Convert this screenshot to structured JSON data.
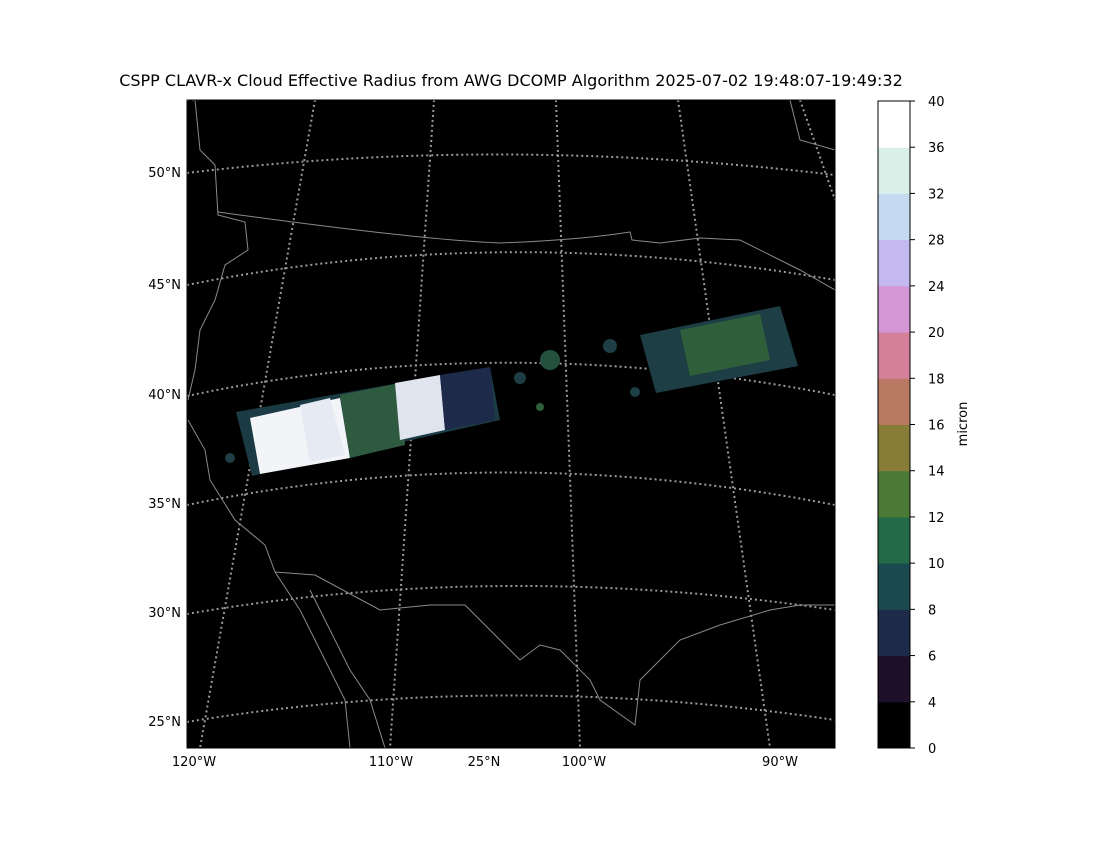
{
  "title": "CSPP CLAVR-x Cloud Effective Radius from AWG DCOMP Algorithm 2025-07-02 19:48:07-19:49:32",
  "map": {
    "lat_labels": [
      "50°N",
      "45°N",
      "40°N",
      "35°N",
      "30°N",
      "25°N"
    ],
    "lon_labels": [
      "120°W",
      "110°W",
      "25°N",
      "100°W",
      "90°W"
    ]
  },
  "colorbar": {
    "label": "micron",
    "ticks": [
      0,
      4,
      6,
      8,
      10,
      12,
      14,
      16,
      18,
      20,
      24,
      28,
      32,
      36,
      40
    ],
    "colors": [
      "#000000",
      "#1e1028",
      "#1e2a4a",
      "#1a4a50",
      "#226a48",
      "#4a7a35",
      "#877c38",
      "#b87862",
      "#d4809a",
      "#d496d4",
      "#c4b8f0",
      "#c5d9f0",
      "#d9f0e8",
      "#ffffff"
    ]
  }
}
